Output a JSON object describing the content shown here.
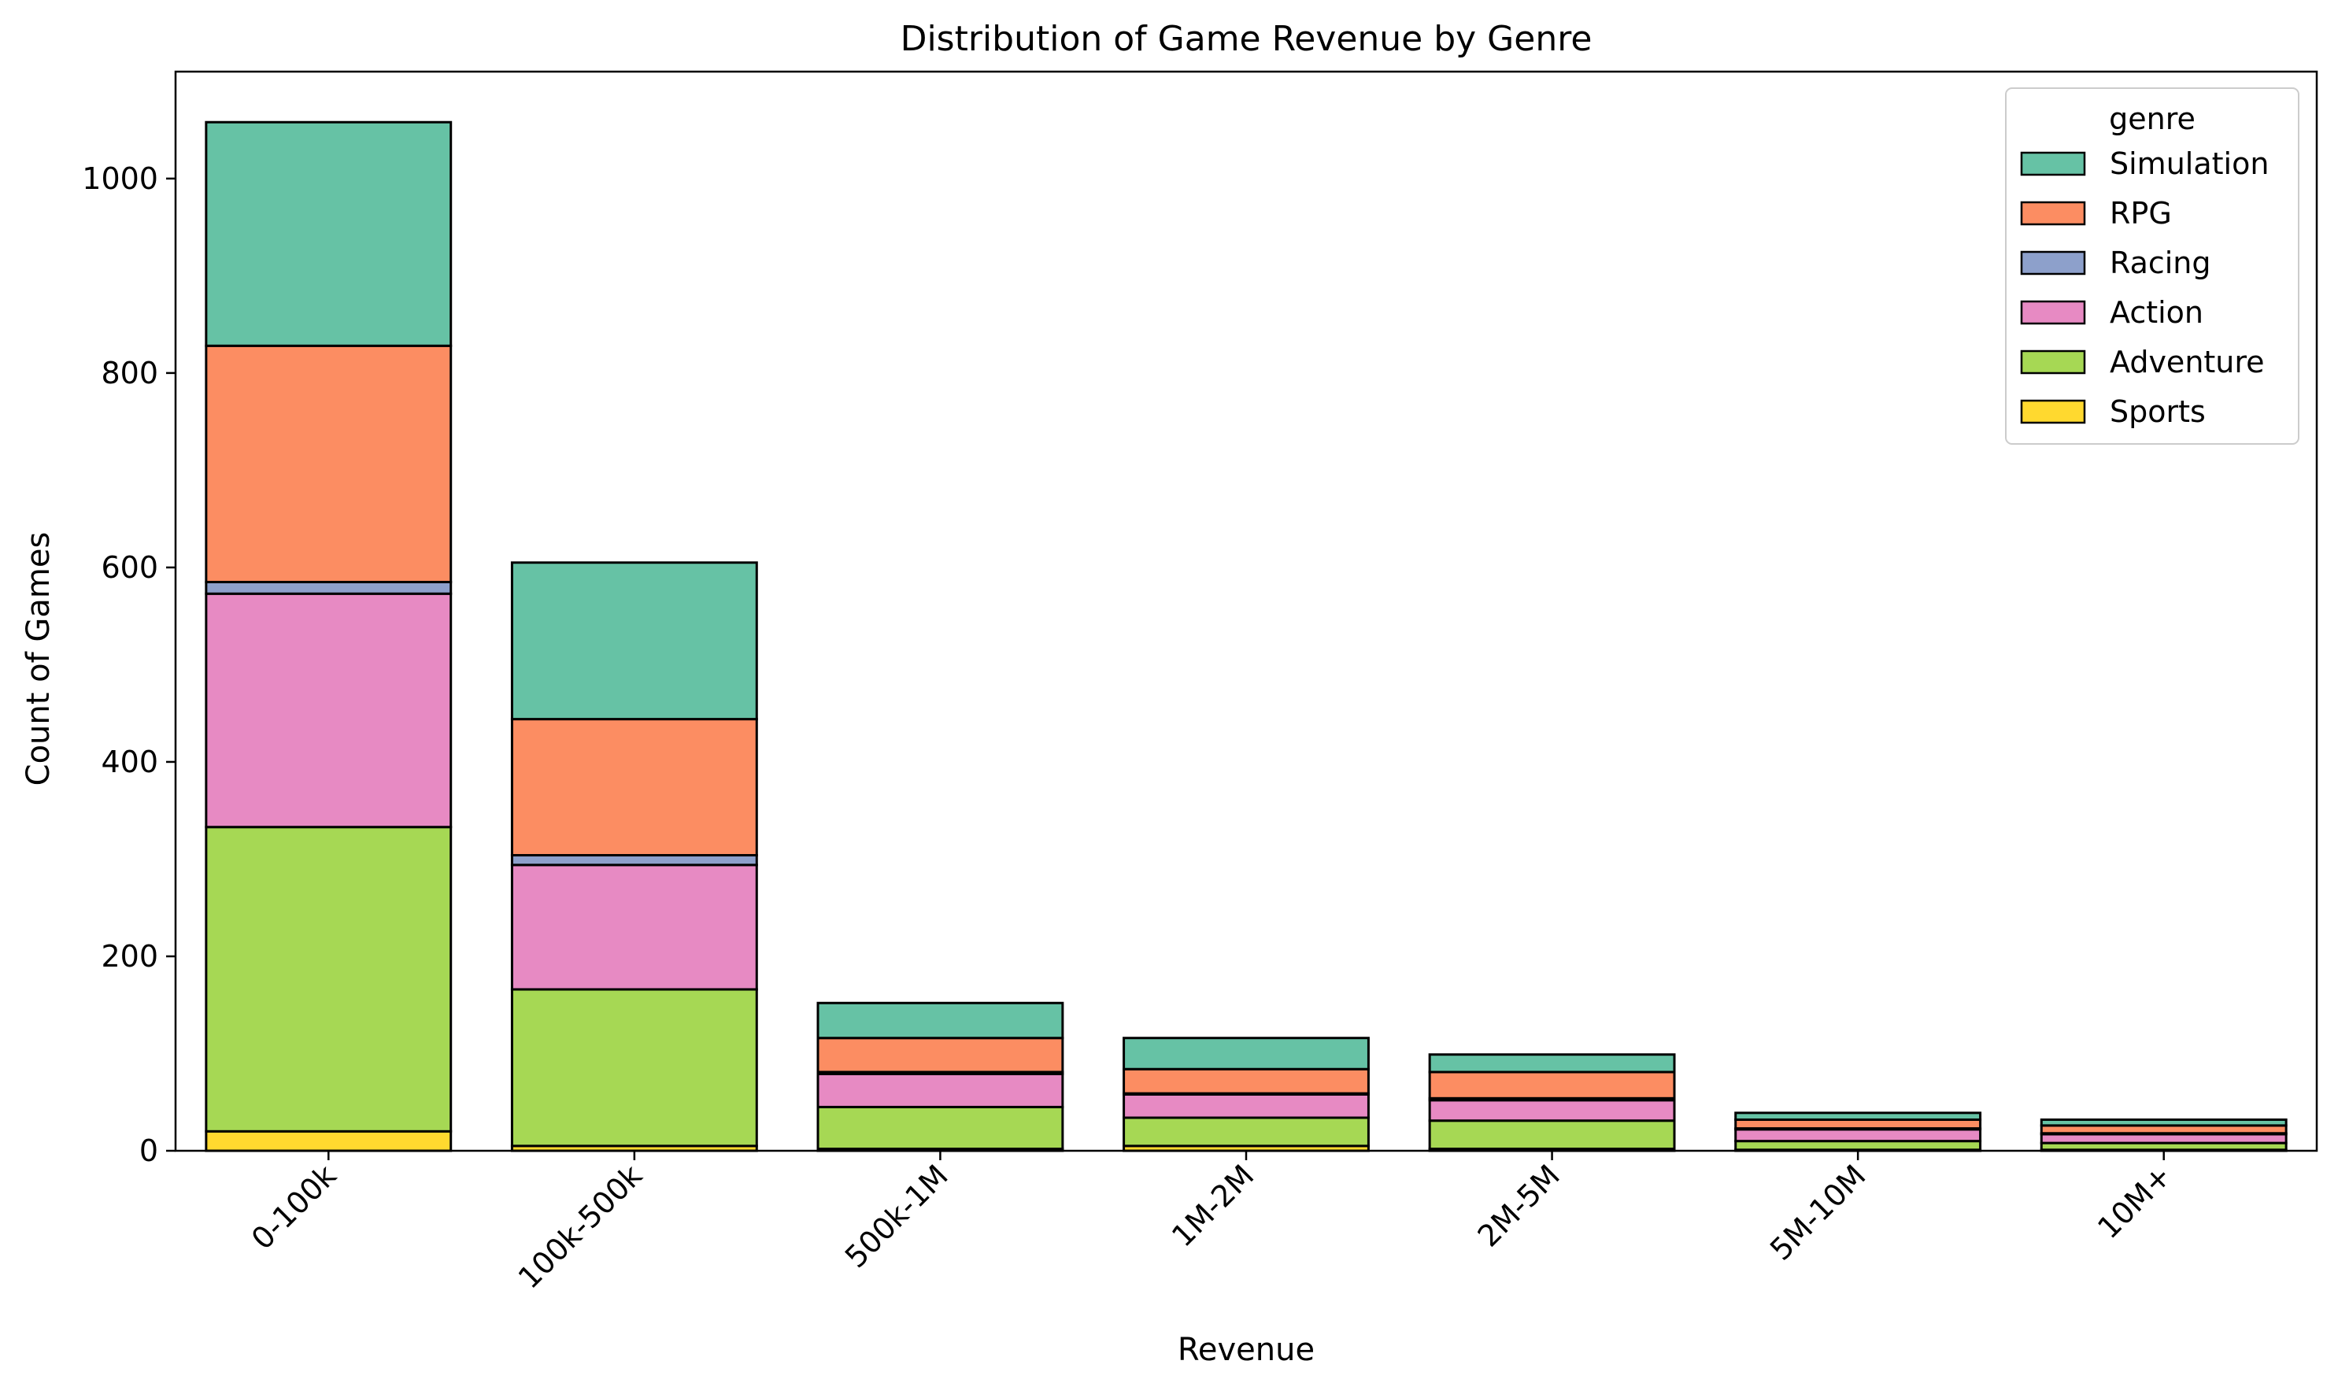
{
  "chart_data": {
    "type": "bar",
    "stacked": true,
    "title": "Distribution of Game Revenue by Genre",
    "xlabel": "Revenue",
    "ylabel": "Count of Games",
    "categories": [
      "0-100k",
      "100k-500k",
      "500k-1M",
      "1M-2M",
      "2M-5M",
      "5M-10M",
      "10M+"
    ],
    "ylim": [
      0,
      1110
    ],
    "yticks": [
      0,
      200,
      400,
      600,
      800,
      1000
    ],
    "grid": false,
    "legend": {
      "title": "genre",
      "position": "top-right"
    },
    "series": [
      {
        "name": "Sports",
        "color": "#ffd92f",
        "values": [
          20,
          5,
          2,
          5,
          2,
          1,
          1
        ]
      },
      {
        "name": "Adventure",
        "color": "#a6d854",
        "values": [
          313,
          161,
          43,
          29,
          29,
          9,
          7
        ]
      },
      {
        "name": "Action",
        "color": "#e78ac3",
        "values": [
          240,
          128,
          34,
          24,
          21,
          12,
          9
        ]
      },
      {
        "name": "Racing",
        "color": "#8da0cb",
        "values": [
          12,
          10,
          2,
          1,
          2,
          1,
          1
        ]
      },
      {
        "name": "RPG",
        "color": "#fc8d62",
        "values": [
          243,
          140,
          35,
          25,
          27,
          9,
          8
        ]
      },
      {
        "name": "Simulation",
        "color": "#66c2a5",
        "values": [
          230,
          161,
          36,
          32,
          18,
          7,
          6
        ]
      }
    ]
  }
}
